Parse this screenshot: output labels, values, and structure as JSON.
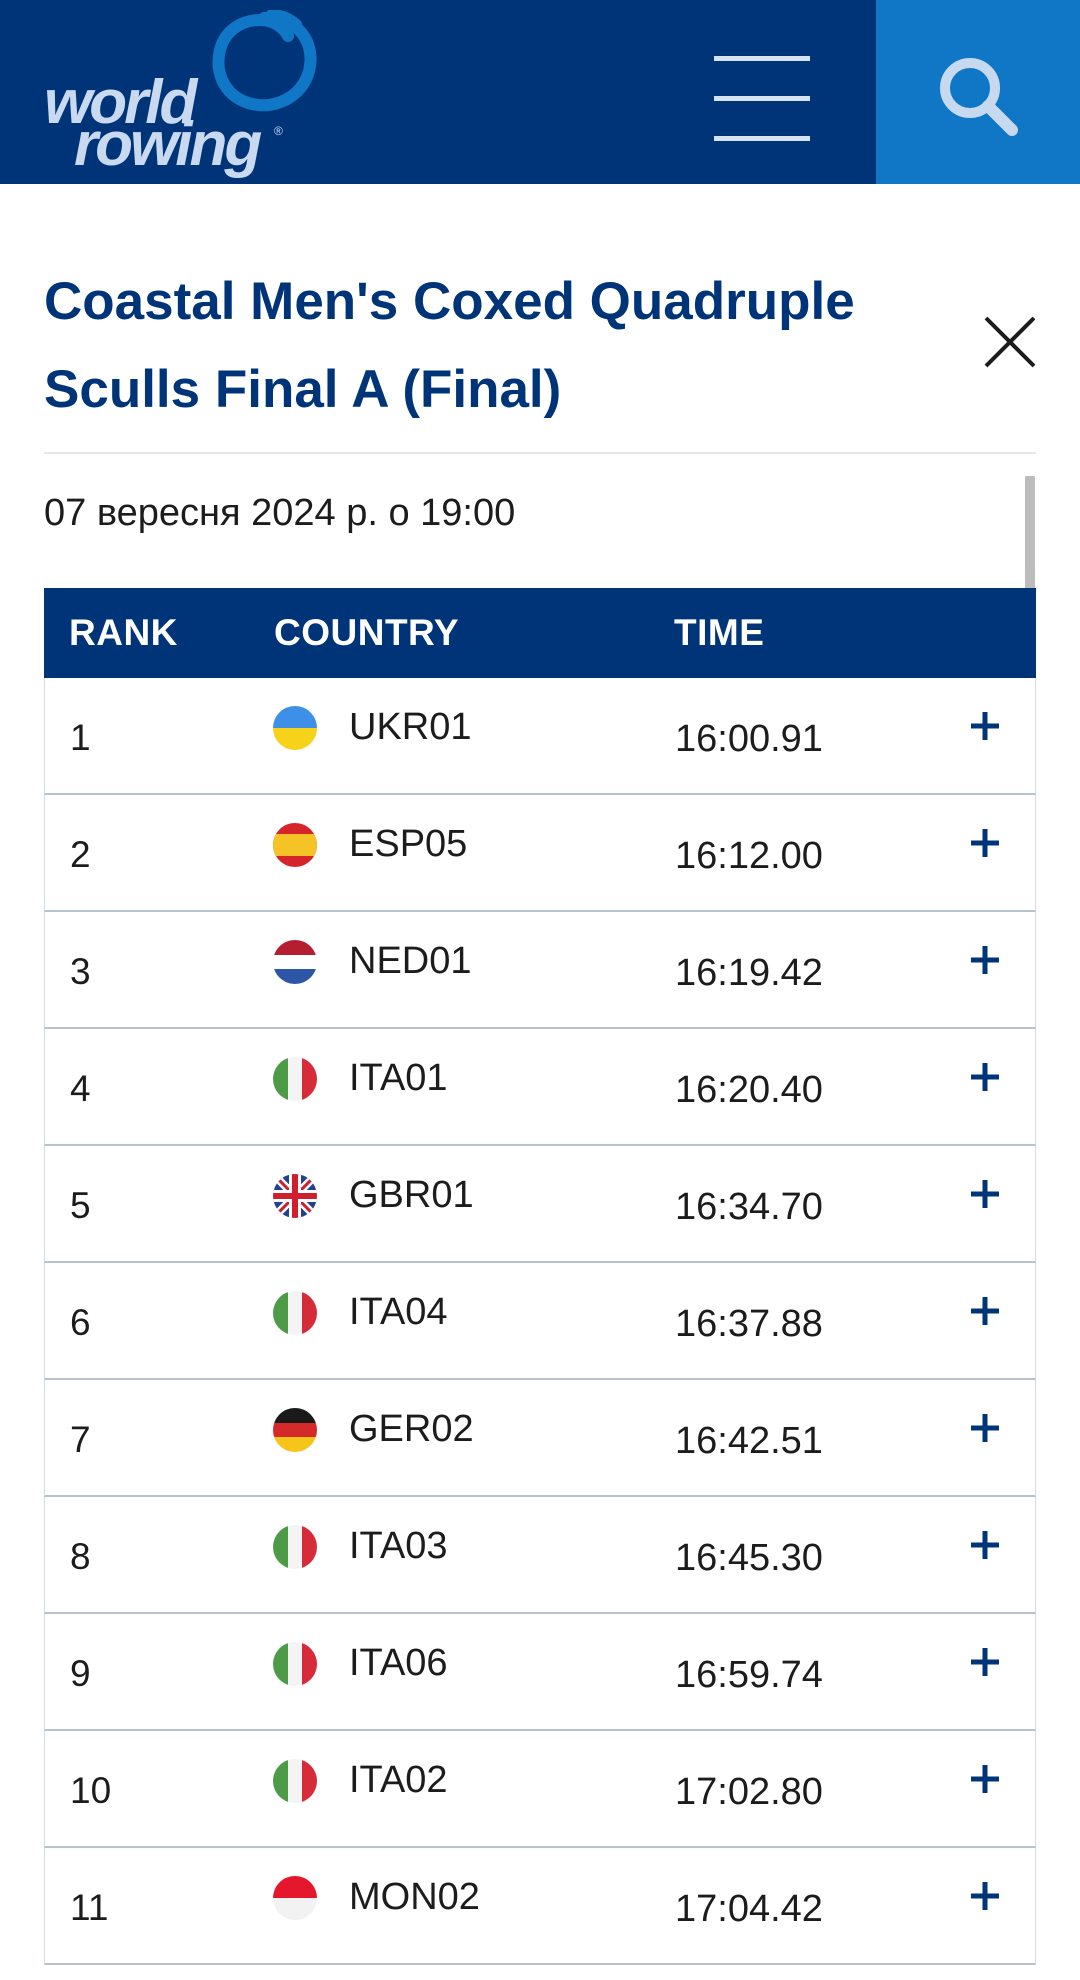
{
  "header": {
    "logo_line1": "world",
    "logo_line2": "rowing",
    "logo_reg": "®"
  },
  "race": {
    "title": "Coastal Men's Coxed Quadruple Sculls Final A (Final)",
    "date": "07 вересня 2024 р. о 19:00"
  },
  "table": {
    "headers": {
      "rank": "RANK",
      "country": "COUNTRY",
      "time": "TIME"
    },
    "rows": [
      {
        "rank": "1",
        "code": "UKR01",
        "time": "16:00.91",
        "flag": "ukraine"
      },
      {
        "rank": "2",
        "code": "ESP05",
        "time": "16:12.00",
        "flag": "spain"
      },
      {
        "rank": "3",
        "code": "NED01",
        "time": "16:19.42",
        "flag": "netherlands"
      },
      {
        "rank": "4",
        "code": "ITA01",
        "time": "16:20.40",
        "flag": "italy"
      },
      {
        "rank": "5",
        "code": "GBR01",
        "time": "16:34.70",
        "flag": "great-britain"
      },
      {
        "rank": "6",
        "code": "ITA04",
        "time": "16:37.88",
        "flag": "italy"
      },
      {
        "rank": "7",
        "code": "GER02",
        "time": "16:42.51",
        "flag": "germany"
      },
      {
        "rank": "8",
        "code": "ITA03",
        "time": "16:45.30",
        "flag": "italy"
      },
      {
        "rank": "9",
        "code": "ITA06",
        "time": "16:59.74",
        "flag": "italy"
      },
      {
        "rank": "10",
        "code": "ITA02",
        "time": "17:02.80",
        "flag": "italy"
      },
      {
        "rank": "11",
        "code": "MON02",
        "time": "17:04.42",
        "flag": "monaco"
      }
    ]
  },
  "colors": {
    "brand_navy": "#003478",
    "search_blue": "#0f77c6",
    "text": "#1c1c1c"
  }
}
